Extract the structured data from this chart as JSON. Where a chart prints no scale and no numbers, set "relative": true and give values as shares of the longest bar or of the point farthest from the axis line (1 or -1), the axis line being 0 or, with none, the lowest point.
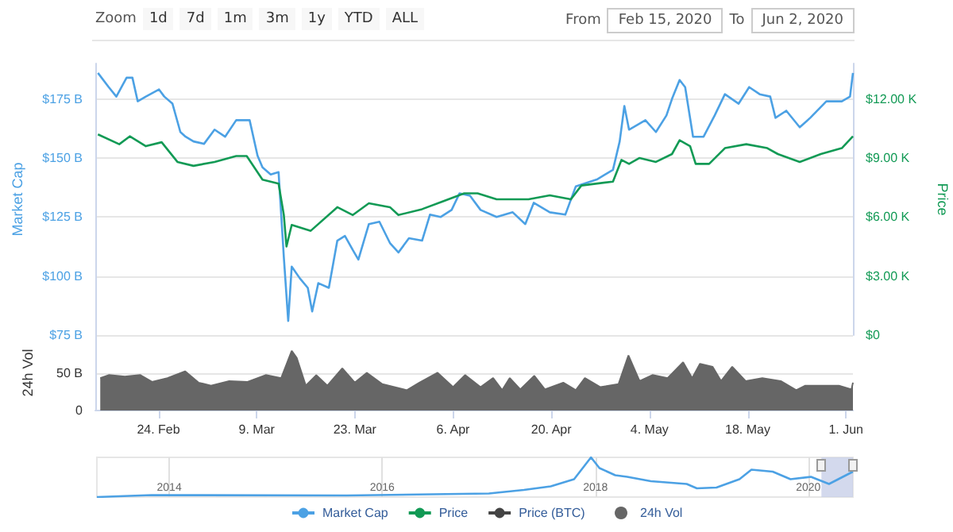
{
  "chart_data": [
    {
      "type": "line",
      "ylabel": "Market Cap",
      "y2label": "Price",
      "annotations": [
        "Zoom",
        "1d",
        "7d",
        "1m",
        "3m",
        "1y",
        "YTD",
        "ALL",
        "From",
        "Feb 15, 2020",
        "To",
        "Jun 2, 2020"
      ],
      "xlim": [
        "2020-02-15",
        "2020-06-02"
      ],
      "ylim": [
        75,
        190
      ],
      "yticks": [
        {
          "value": 75,
          "label": "$75 B"
        },
        {
          "value": 100,
          "label": "$100 B"
        },
        {
          "value": 125,
          "label": "$125 B"
        },
        {
          "value": 150,
          "label": "$150 B"
        },
        {
          "value": 175,
          "label": "$175 B"
        }
      ],
      "y2lim": [
        0,
        13800
      ],
      "y2ticks": [
        {
          "value": 0,
          "label": "$0"
        },
        {
          "value": 3000,
          "label": "$3.00 K"
        },
        {
          "value": 6000,
          "label": "$6.00 K"
        },
        {
          "value": 9000,
          "label": "$9.00 K"
        },
        {
          "value": 12000,
          "label": "$12.00 K"
        }
      ],
      "grid": "y",
      "legend": "bottom",
      "tick_labels": "y",
      "series": [
        {
          "name": "Market Cap",
          "color": "#4ca1e4",
          "x": [
            "2020-02-15T09:00",
            "2020-02-16T22:00",
            "2020-02-18T00:00",
            "2020-02-19T11:00",
            "2020-02-20T07:00",
            "2020-02-21T01:00",
            "2020-02-22T05:00",
            "2020-02-24T02:00",
            "2020-02-24T20:00",
            "2020-02-26T00:00",
            "2020-02-27T03:00",
            "2020-02-27T21:00",
            "2020-02-29T00:00",
            "2020-03-01T12:00",
            "2020-03-03T00:00",
            "2020-03-04T12:00",
            "2020-03-06T02:00",
            "2020-03-08T00:00",
            "2020-03-09T03:00",
            "2020-03-09T20:00",
            "2020-03-11T00:00",
            "2020-03-12T03:00",
            "2020-03-12T21:00",
            "2020-03-13T12:00",
            "2020-03-14T00:00",
            "2020-03-15T04:00",
            "2020-03-16T07:00",
            "2020-03-16T22:00",
            "2020-03-17T19:00",
            "2020-03-19T07:00",
            "2020-03-20T12:00",
            "2020-03-21T14:00",
            "2020-03-22T17:00",
            "2020-03-23T12:00",
            "2020-03-25T00:00",
            "2020-03-26T12:00",
            "2020-03-28T00:00",
            "2020-03-29T05:00",
            "2020-03-30T17:00",
            "2020-04-01T14:00",
            "2020-04-02T17:00",
            "2020-04-04T05:00",
            "2020-04-05T19:00",
            "2020-04-06T22:00",
            "2020-04-08T10:00",
            "2020-04-09T22:00",
            "2020-04-12T05:00",
            "2020-04-14T12:00",
            "2020-04-16T07:00",
            "2020-04-17T12:00",
            "2020-04-19T19:00",
            "2020-04-22T00:00",
            "2020-04-23T12:00",
            "2020-04-26T14:00",
            "2020-04-28T19:00",
            "2020-04-29T18:00",
            "2020-04-30T10:00",
            "2020-05-01T02:00",
            "2020-05-03T10:00",
            "2020-05-04T22:00",
            "2020-05-06T10:00",
            "2020-05-07T05:00",
            "2020-05-08T07:00",
            "2020-05-09T02:00",
            "2020-05-10T05:00",
            "2020-05-11T17:00",
            "2020-05-13T07:00",
            "2020-05-14T18:00",
            "2020-05-16T17:00",
            "2020-05-18T05:00",
            "2020-05-19T17:00",
            "2020-05-21T05:00",
            "2020-05-21T23:00",
            "2020-05-23T12:00",
            "2020-05-25T10:00",
            "2020-05-26T22:00",
            "2020-05-29T05:00",
            "2020-05-31T10:00",
            "2020-06-01T14:00",
            "2020-06-02T00:00"
          ],
          "values": [
            186,
            180,
            176,
            184,
            184,
            174,
            176,
            179,
            176,
            173,
            161,
            159,
            157,
            156,
            162,
            159,
            166,
            166,
            151,
            146,
            143,
            144,
            108,
            81,
            104,
            99,
            95,
            85,
            97,
            95,
            115,
            117,
            111,
            107,
            122,
            123,
            114,
            110,
            116,
            115,
            126,
            125,
            128,
            135,
            134,
            128,
            125,
            127,
            122,
            131,
            127,
            126,
            138,
            141,
            145,
            157,
            172,
            162,
            166,
            161,
            168,
            175,
            183,
            180,
            159,
            159,
            168,
            177,
            173,
            180,
            177,
            176,
            167,
            170,
            163,
            167,
            174,
            174,
            176,
            186
          ]
        },
        {
          "name": "Price",
          "color": "#129a55",
          "axis": "y2",
          "x": [
            "2020-02-15T09:00",
            "2020-02-18T10:00",
            "2020-02-19T22:00",
            "2020-02-22T05:00",
            "2020-02-24T11:00",
            "2020-02-26T17:00",
            "2020-02-29T00:00",
            "2020-03-03T00:00",
            "2020-03-06T02:00",
            "2020-03-07T14:00",
            "2020-03-09T20:00",
            "2020-03-12T03:00",
            "2020-03-12T21:00",
            "2020-03-13T06:00",
            "2020-03-14T00:00",
            "2020-03-16T17:00",
            "2020-03-20T12:00",
            "2020-03-22T17:00",
            "2020-03-25T00:00",
            "2020-03-28T00:00",
            "2020-03-29T05:00",
            "2020-04-01T14:00",
            "2020-04-04T14:00",
            "2020-04-07T14:00",
            "2020-04-09T12:00",
            "2020-04-12T05:00",
            "2020-04-16T18:00",
            "2020-04-19T19:00",
            "2020-04-22T19:00",
            "2020-04-24T07:00",
            "2020-04-28T19:00",
            "2020-04-30T00:00",
            "2020-05-01T02:00",
            "2020-05-02T14:00",
            "2020-05-04T22:00",
            "2020-05-07T05:00",
            "2020-05-08T07:00",
            "2020-05-09T19:00",
            "2020-05-10T14:00",
            "2020-05-12T12:00",
            "2020-05-14T18:00",
            "2020-05-17T19:00",
            "2020-05-20T19:00",
            "2020-05-22T07:00",
            "2020-05-25T10:00",
            "2020-05-28T10:00",
            "2020-05-31T10:00",
            "2020-06-02T00:00"
          ],
          "values": [
            10200,
            9700,
            10100,
            9600,
            9800,
            8800,
            8600,
            8800,
            9100,
            9100,
            7900,
            7700,
            6100,
            4500,
            5600,
            5300,
            6500,
            6100,
            6700,
            6500,
            6100,
            6400,
            6800,
            7200,
            7200,
            6900,
            6900,
            7100,
            6900,
            7600,
            7800,
            8900,
            8700,
            9000,
            8800,
            9200,
            9900,
            9600,
            8700,
            8700,
            9500,
            9700,
            9500,
            9200,
            8800,
            9200,
            9500,
            10100
          ]
        },
        {
          "name": "Price (BTC)",
          "color": "#444444"
        }
      ]
    },
    {
      "type": "area",
      "ylabel": "24h Vol",
      "legend": "bottom",
      "grid": "y",
      "xlim": [
        "2020-02-15",
        "2020-06-02"
      ],
      "xticks": [
        {
          "value": "2020-02-24",
          "label": "24. Feb"
        },
        {
          "value": "2020-03-09",
          "label": "9. Mar"
        },
        {
          "value": "2020-03-23",
          "label": "23. Mar"
        },
        {
          "value": "2020-04-06",
          "label": "6. Apr"
        },
        {
          "value": "2020-04-20",
          "label": "20. Apr"
        },
        {
          "value": "2020-05-04",
          "label": "4. May"
        },
        {
          "value": "2020-05-18",
          "label": "18. May"
        },
        {
          "value": "2020-06-01",
          "label": "1. Jun"
        }
      ],
      "ylim": [
        0,
        100
      ],
      "yticks": [
        0,
        {
          "value": 50,
          "label": "50 B"
        }
      ],
      "series": [
        {
          "name": "24h Vol",
          "color": "#666666",
          "x": [
            "2020-02-15T17:00",
            "2020-02-16T22:00",
            "2020-02-19T05:00",
            "2020-02-21T10:00",
            "2020-02-23T02:00",
            "2020-02-25T07:00",
            "2020-02-27T19:00",
            "2020-02-29T17:00",
            "2020-03-02T12:00",
            "2020-03-05T02:00",
            "2020-03-07T17:00",
            "2020-03-10T07:00",
            "2020-03-12T12:00",
            "2020-03-14T00:00",
            "2020-03-14T17:00",
            "2020-03-16T00:00",
            "2020-03-17T12:00",
            "2020-03-19T02:00",
            "2020-03-21T05:00",
            "2020-03-23T00:00",
            "2020-03-24T17:00",
            "2020-03-26T22:00",
            "2020-03-30T10:00",
            "2020-04-01T05:00",
            "2020-04-03T19:00",
            "2020-04-06T00:00",
            "2020-04-07T17:00",
            "2020-04-09T22:00",
            "2020-04-11T17:00",
            "2020-04-13T00:00",
            "2020-04-14T02:00",
            "2020-04-15T14:00",
            "2020-04-17T14:00",
            "2020-04-19T02:00",
            "2020-04-21T17:00",
            "2020-04-23T12:00",
            "2020-04-24T19:00",
            "2020-04-27T00:00",
            "2020-04-29T14:00",
            "2020-05-01T00:00",
            "2020-05-02T14:00",
            "2020-05-04T10:00",
            "2020-05-06T14:00",
            "2020-05-08T19:00",
            "2020-05-10T02:00",
            "2020-05-11T05:00",
            "2020-05-13T00:00",
            "2020-05-14T05:00",
            "2020-05-15T19:00",
            "2020-05-17T17:00",
            "2020-05-20T02:00",
            "2020-05-22T17:00",
            "2020-05-24T22:00",
            "2020-05-26T05:00",
            "2020-05-28T22:00",
            "2020-05-31T00:00",
            "2020-06-01T19:00",
            "2020-06-02T00:00"
          ],
          "values": [
            43,
            47,
            45,
            47,
            38,
            43,
            52,
            37,
            33,
            39,
            38,
            47,
            43,
            79,
            70,
            33,
            47,
            33,
            56,
            37,
            50,
            35,
            27,
            37,
            50,
            31,
            47,
            31,
            43,
            27,
            43,
            28,
            46,
            28,
            37,
            27,
            43,
            31,
            35,
            73,
            39,
            47,
            43,
            64,
            43,
            62,
            58,
            39,
            58,
            39,
            43,
            39,
            27,
            33,
            33,
            33,
            28,
            37
          ]
        }
      ]
    },
    {
      "type": "line",
      "relative": true,
      "tick_labels": "x",
      "grid": "x",
      "x": [
        "2013-04-28",
        "2013-11-01",
        "2015-09-01",
        "2017-01-01",
        "2017-05-01",
        "2017-08-01",
        "2017-10-20",
        "2017-12-17",
        "2018-01-15",
        "2018-03-10",
        "2018-04-20",
        "2018-07-10",
        "2018-11-10",
        "2018-12-15",
        "2019-02-20",
        "2019-05-10",
        "2019-06-20",
        "2019-09-01",
        "2019-11-01",
        "2020-01-10",
        "2020-03-12",
        "2020-06-02"
      ],
      "xlim": [
        "2013-04-28",
        "2020-06-02"
      ],
      "xticks": [
        {
          "value": "2014",
          "label": "2014"
        },
        {
          "value": "2016",
          "label": "2016"
        },
        {
          "value": "2018",
          "label": "2018"
        },
        {
          "value": "2020",
          "label": "2020"
        }
      ],
      "bands": [
        {
          "axis": "x",
          "from": "2020-02-15",
          "to": "2020-06-02",
          "color": "#c8d0e8"
        }
      ],
      "series": [
        {
          "color": "#4ca1e4",
          "values": [
            0,
            0.05,
            0.04,
            0.09,
            0.18,
            0.27,
            0.45,
            1,
            0.73,
            0.55,
            0.51,
            0.4,
            0.33,
            0.22,
            0.24,
            0.45,
            0.69,
            0.64,
            0.45,
            0.51,
            0.33,
            0.64
          ]
        }
      ]
    }
  ]
}
